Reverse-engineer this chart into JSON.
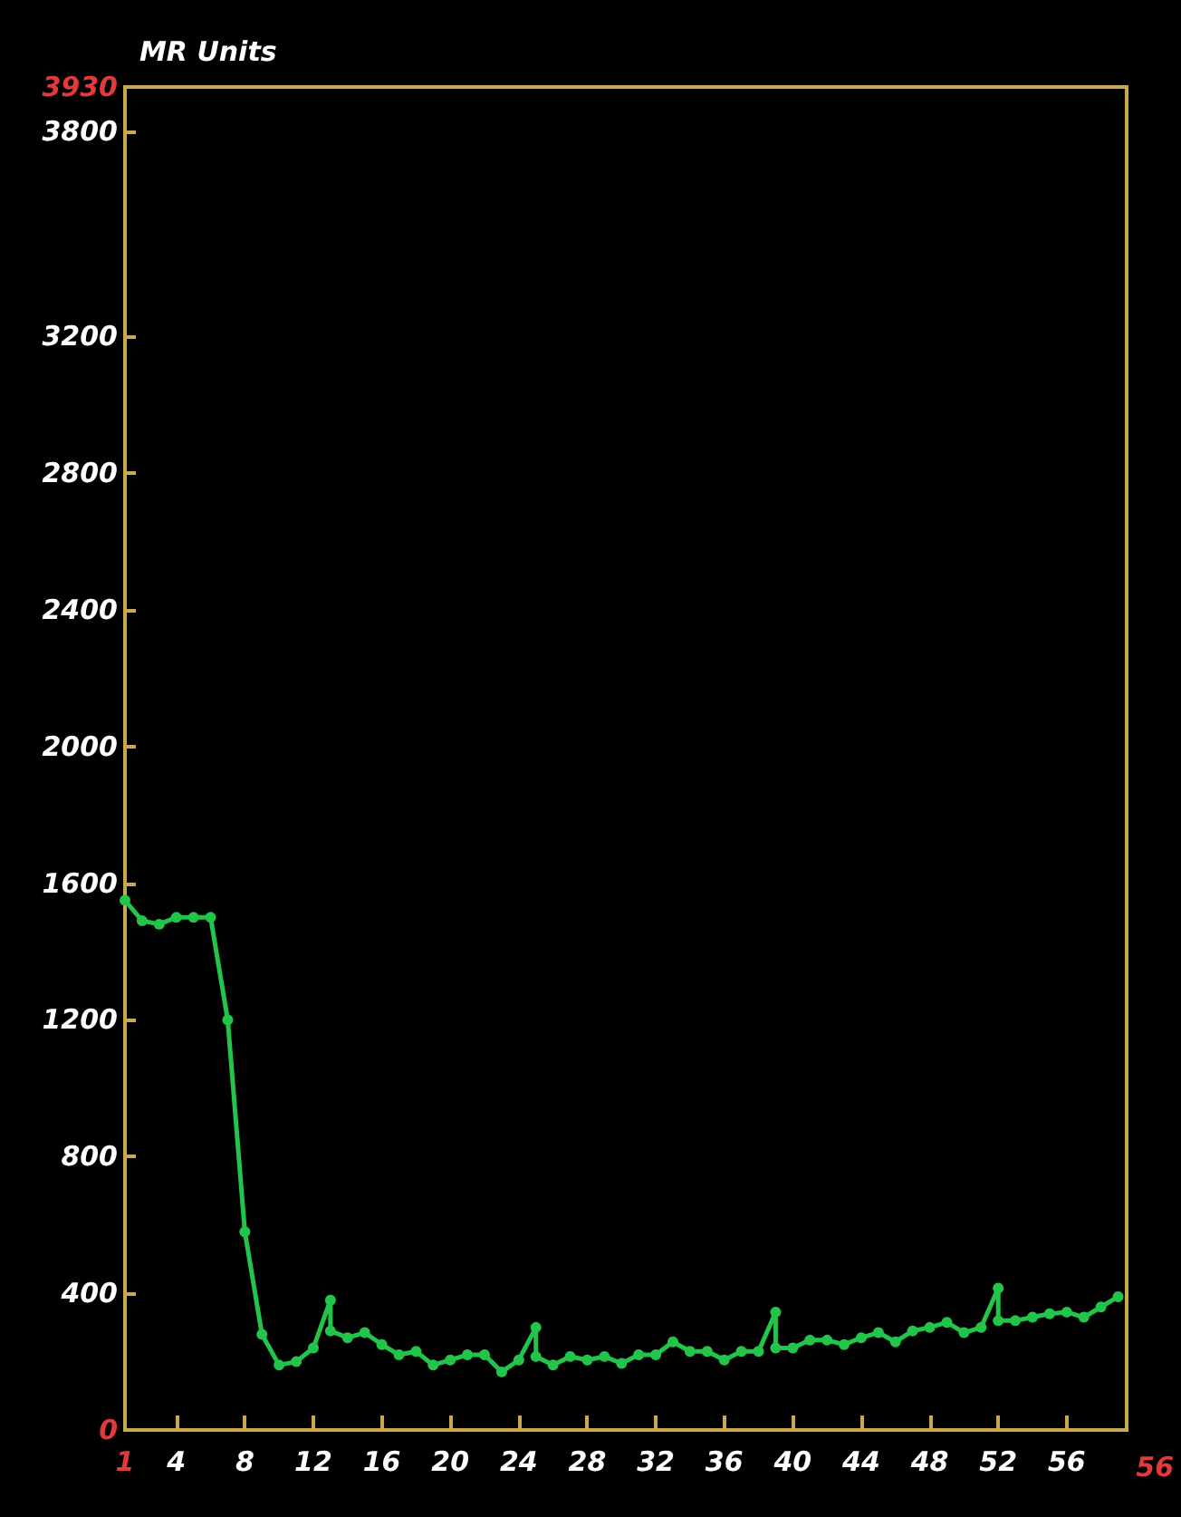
{
  "chart_data": {
    "type": "line",
    "ylabel": "MR Units",
    "x": [
      1,
      2,
      3,
      4,
      5,
      6,
      7,
      8,
      9,
      10,
      11,
      12,
      13,
      13,
      14,
      15,
      16,
      17,
      18,
      19,
      20,
      21,
      22,
      23,
      24,
      25,
      25,
      26,
      27,
      28,
      29,
      30,
      31,
      32,
      33,
      34,
      35,
      36,
      37,
      38,
      39,
      39,
      40,
      41,
      42,
      43,
      44,
      45,
      46,
      47,
      48,
      49,
      50,
      51,
      52,
      52,
      53,
      54,
      55,
      56,
      57,
      58,
      59
    ],
    "series": [
      {
        "color": "#22c44a",
        "values": [
          1550,
          1490,
          1480,
          1500,
          1500,
          1500,
          1200,
          580,
          280,
          190,
          200,
          240,
          380,
          290,
          270,
          285,
          250,
          220,
          230,
          190,
          205,
          220,
          220,
          170,
          205,
          300,
          215,
          190,
          215,
          205,
          215,
          195,
          220,
          220,
          258,
          230,
          230,
          205,
          230,
          230,
          345,
          240,
          240,
          263,
          263,
          250,
          270,
          285,
          258,
          290,
          300,
          315,
          285,
          300,
          415,
          320,
          320,
          330,
          340,
          345,
          330,
          360,
          390
        ]
      }
    ],
    "xlim": [
      1,
      59.5
    ],
    "xticks": [
      1,
      4,
      8,
      12,
      16,
      20,
      24,
      28,
      32,
      36,
      40,
      44,
      48,
      52,
      56
    ],
    "annotations": [
      "56"
    ],
    "ylim": [
      0,
      3930
    ],
    "yticks": [
      0,
      400,
      800,
      1200,
      1600,
      2000,
      2400,
      2800,
      3200,
      3800,
      3930
    ],
    "grid": false,
    "marker": "circle",
    "line_style": "solid"
  }
}
